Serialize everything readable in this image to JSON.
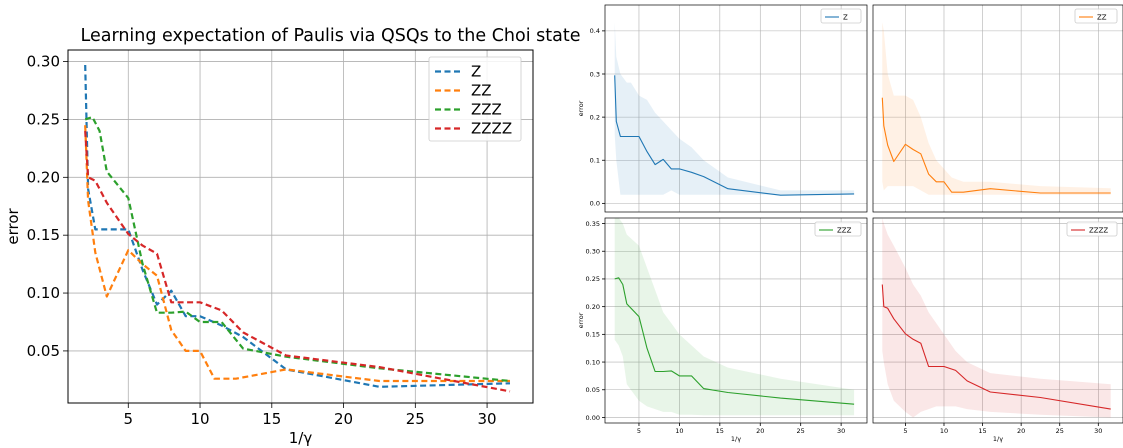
{
  "chart_data": [
    {
      "type": "line",
      "title": "Learning expectation of Paulis via QSQs to the Choi state",
      "xlabel": "1/γ",
      "ylabel": "error",
      "xlim": [
        0.8,
        33.2
      ],
      "ylim": [
        0.005,
        0.31
      ],
      "xticks": [
        "5",
        "10",
        "15",
        "20",
        "25",
        "30"
      ],
      "yticks": [
        "0.05",
        "0.10",
        "0.15",
        "0.20",
        "0.25",
        "0.30"
      ],
      "grid": true,
      "legend": "top-right",
      "series": [
        {
          "name": "Z",
          "color": "#1f77b4",
          "style": "dashed",
          "x": [
            2.0,
            2.2,
            2.7,
            3.5,
            4.0,
            5.0,
            6.0,
            7.0,
            8.0,
            9.0,
            10.0,
            11.5,
            13.0,
            16.0,
            22.5,
            31.6
          ],
          "y": [
            0.297,
            0.19,
            0.155,
            0.155,
            0.155,
            0.155,
            0.12,
            0.09,
            0.102,
            0.08,
            0.08,
            0.072,
            0.062,
            0.034,
            0.019,
            0.022
          ]
        },
        {
          "name": "ZZ",
          "color": "#ff7f0e",
          "style": "dashed",
          "x": [
            2.0,
            2.2,
            2.7,
            3.5,
            5.0,
            6.0,
            7.0,
            8.0,
            9.0,
            10.0,
            11.0,
            12.5,
            16.0,
            22.5,
            31.6
          ],
          "y": [
            0.245,
            0.18,
            0.135,
            0.097,
            0.137,
            0.125,
            0.115,
            0.068,
            0.05,
            0.05,
            0.026,
            0.026,
            0.034,
            0.024,
            0.024
          ]
        },
        {
          "name": "ZZZ",
          "color": "#2ca02c",
          "style": "dashed",
          "x": [
            2.0,
            2.5,
            3.0,
            3.5,
            5.0,
            6.0,
            7.0,
            8.0,
            9.0,
            10.0,
            11.5,
            13.0,
            16.0,
            22.5,
            31.6
          ],
          "y": [
            0.25,
            0.252,
            0.24,
            0.205,
            0.182,
            0.125,
            0.083,
            0.083,
            0.084,
            0.075,
            0.075,
            0.052,
            0.045,
            0.035,
            0.024
          ]
        },
        {
          "name": "ZZZZ",
          "color": "#d62728",
          "style": "dashed",
          "x": [
            2.0,
            2.2,
            2.7,
            3.5,
            5.0,
            6.0,
            7.0,
            8.0,
            9.0,
            10.0,
            11.5,
            13.0,
            16.0,
            22.5,
            31.6
          ],
          "y": [
            0.24,
            0.2,
            0.197,
            0.178,
            0.151,
            0.141,
            0.134,
            0.092,
            0.092,
            0.092,
            0.085,
            0.066,
            0.046,
            0.036,
            0.015
          ]
        }
      ]
    },
    {
      "type": "line",
      "xlabel": "",
      "ylabel": "error",
      "xlim": [
        0.8,
        33.2
      ],
      "ylim": [
        -0.02,
        0.46
      ],
      "xticks": [],
      "yticks": [
        "0.0",
        "0.1",
        "0.2",
        "0.3",
        "0.4"
      ],
      "grid": true,
      "legend": "top-right",
      "series": [
        {
          "name": "Z",
          "color": "#1f77b4",
          "band": true,
          "x": [
            2.0,
            2.2,
            2.7,
            3.5,
            4.0,
            5.0,
            6.0,
            7.0,
            8.0,
            9.0,
            10.0,
            11.5,
            13.0,
            16.0,
            22.5,
            31.6
          ],
          "y": [
            0.297,
            0.19,
            0.155,
            0.155,
            0.155,
            0.155,
            0.12,
            0.09,
            0.102,
            0.08,
            0.08,
            0.072,
            0.062,
            0.034,
            0.019,
            0.022
          ],
          "lower": [
            0.16,
            0.1,
            0.02,
            0.02,
            0.02,
            0.02,
            0.02,
            0.02,
            0.02,
            0.03,
            0.02,
            0.02,
            0.02,
            0.02,
            0.02,
            0.02
          ],
          "upper": [
            0.42,
            0.34,
            0.3,
            0.28,
            0.28,
            0.25,
            0.24,
            0.21,
            0.19,
            0.17,
            0.15,
            0.13,
            0.1,
            0.06,
            0.03,
            0.03
          ]
        }
      ]
    },
    {
      "type": "line",
      "xlabel": "",
      "ylabel": "",
      "xlim": [
        0.8,
        33.2
      ],
      "ylim": [
        -0.02,
        0.46
      ],
      "xticks": [],
      "yticks": [],
      "grid": true,
      "legend": "top-right",
      "series": [
        {
          "name": "ZZ",
          "color": "#ff7f0e",
          "band": true,
          "x": [
            2.0,
            2.2,
            2.7,
            3.5,
            5.0,
            6.0,
            7.0,
            8.0,
            9.0,
            10.0,
            11.0,
            12.5,
            16.0,
            22.5,
            31.6
          ],
          "y": [
            0.245,
            0.18,
            0.135,
            0.097,
            0.137,
            0.125,
            0.115,
            0.068,
            0.05,
            0.05,
            0.026,
            0.026,
            0.034,
            0.024,
            0.024
          ],
          "lower": [
            0.05,
            0.03,
            0.04,
            0.04,
            0.04,
            0.04,
            0.03,
            0.02,
            0.02,
            0.02,
            0.02,
            0.02,
            0.02,
            0.02,
            0.02
          ],
          "upper": [
            0.42,
            0.4,
            0.3,
            0.25,
            0.25,
            0.24,
            0.2,
            0.14,
            0.1,
            0.08,
            0.06,
            0.05,
            0.05,
            0.04,
            0.035
          ]
        }
      ]
    },
    {
      "type": "line",
      "xlabel": "1/γ",
      "ylabel": "error",
      "xlim": [
        0.8,
        33.2
      ],
      "ylim": [
        -0.01,
        0.36
      ],
      "xticks": [
        "5",
        "10",
        "15",
        "20",
        "25",
        "30"
      ],
      "yticks": [
        "0.00",
        "0.05",
        "0.10",
        "0.15",
        "0.20",
        "0.25",
        "0.30",
        "0.35"
      ],
      "grid": true,
      "legend": "top-right",
      "series": [
        {
          "name": "ZZZ",
          "color": "#2ca02c",
          "band": true,
          "x": [
            2.0,
            2.5,
            3.0,
            3.5,
            5.0,
            6.0,
            7.0,
            8.0,
            9.0,
            10.0,
            11.5,
            13.0,
            16.0,
            22.5,
            31.6
          ],
          "y": [
            0.25,
            0.252,
            0.24,
            0.205,
            0.182,
            0.125,
            0.083,
            0.083,
            0.084,
            0.075,
            0.075,
            0.052,
            0.045,
            0.035,
            0.024
          ],
          "lower": [
            0.14,
            0.13,
            0.11,
            0.06,
            0.03,
            0.02,
            0.015,
            0.01,
            0.01,
            0.005,
            0.005,
            0.004,
            0.004,
            0.004,
            0.004
          ],
          "upper": [
            0.36,
            0.36,
            0.35,
            0.33,
            0.31,
            0.27,
            0.23,
            0.19,
            0.17,
            0.15,
            0.13,
            0.11,
            0.09,
            0.07,
            0.05
          ]
        }
      ]
    },
    {
      "type": "line",
      "xlabel": "1/γ",
      "ylabel": "",
      "xlim": [
        0.8,
        33.2
      ],
      "ylim": [
        -0.01,
        0.36
      ],
      "xticks": [
        "5",
        "10",
        "15",
        "20",
        "25",
        "30"
      ],
      "yticks": [],
      "grid": true,
      "legend": "top-right",
      "series": [
        {
          "name": "ZZZZ",
          "color": "#d62728",
          "band": true,
          "x": [
            2.0,
            2.2,
            2.7,
            3.5,
            5.0,
            6.0,
            7.0,
            8.0,
            9.0,
            10.0,
            11.5,
            13.0,
            16.0,
            22.5,
            31.6
          ],
          "y": [
            0.24,
            0.2,
            0.197,
            0.178,
            0.151,
            0.141,
            0.134,
            0.092,
            0.092,
            0.092,
            0.085,
            0.066,
            0.046,
            0.036,
            0.015
          ],
          "lower": [
            0.12,
            0.1,
            0.06,
            0.03,
            0.01,
            0.0,
            0.01,
            0.015,
            0.02,
            0.02,
            0.02,
            0.015,
            0.01,
            0.005,
            0.0
          ],
          "upper": [
            0.36,
            0.35,
            0.33,
            0.31,
            0.27,
            0.24,
            0.22,
            0.19,
            0.17,
            0.15,
            0.12,
            0.1,
            0.08,
            0.07,
            0.06
          ]
        }
      ]
    }
  ]
}
